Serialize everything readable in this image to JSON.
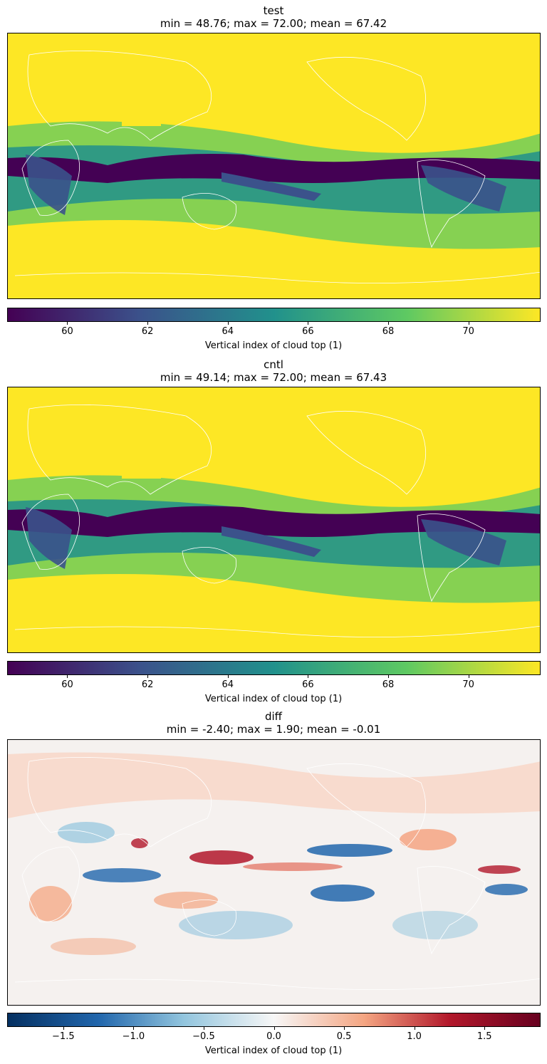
{
  "panels": [
    {
      "title": "test",
      "stats": "min = 48.76; max = 72.00; mean = 67.42",
      "colormap": "viridis",
      "colorbar": {
        "range": [
          58.5,
          71.8
        ],
        "ticks": [
          "60",
          "62",
          "64",
          "66",
          "68",
          "70"
        ],
        "tick_values": [
          60,
          62,
          64,
          66,
          68,
          70
        ],
        "label": "Vertical index of cloud top (1)"
      }
    },
    {
      "title": "cntl",
      "stats": "min = 49.14; max = 72.00; mean = 67.43",
      "colormap": "viridis",
      "colorbar": {
        "range": [
          58.5,
          71.8
        ],
        "ticks": [
          "60",
          "62",
          "64",
          "66",
          "68",
          "70"
        ],
        "tick_values": [
          60,
          62,
          64,
          66,
          68,
          70
        ],
        "label": "Vertical index of cloud top (1)"
      }
    },
    {
      "title": "diff",
      "stats": "min = -2.40; max = 1.90; mean = -0.01",
      "colormap": "RdBu_r",
      "colorbar": {
        "range": [
          -1.9,
          1.9
        ],
        "ticks": [
          "−1.5",
          "−1.0",
          "−0.5",
          "0.0",
          "0.5",
          "1.0",
          "1.5"
        ],
        "tick_values": [
          -1.5,
          -1.0,
          -0.5,
          0.0,
          0.5,
          1.0,
          1.5
        ],
        "label": "Vertical index of cloud top (1)"
      }
    }
  ],
  "colors": {
    "viridis": [
      "#440154",
      "#3b528b",
      "#21918c",
      "#5ec962",
      "#fde725"
    ],
    "RdBu_r": [
      "#053061",
      "#2166ac",
      "#92c5de",
      "#f7f7f7",
      "#f4a582",
      "#b2182b",
      "#67001f"
    ],
    "coastline": "#ffffff"
  }
}
